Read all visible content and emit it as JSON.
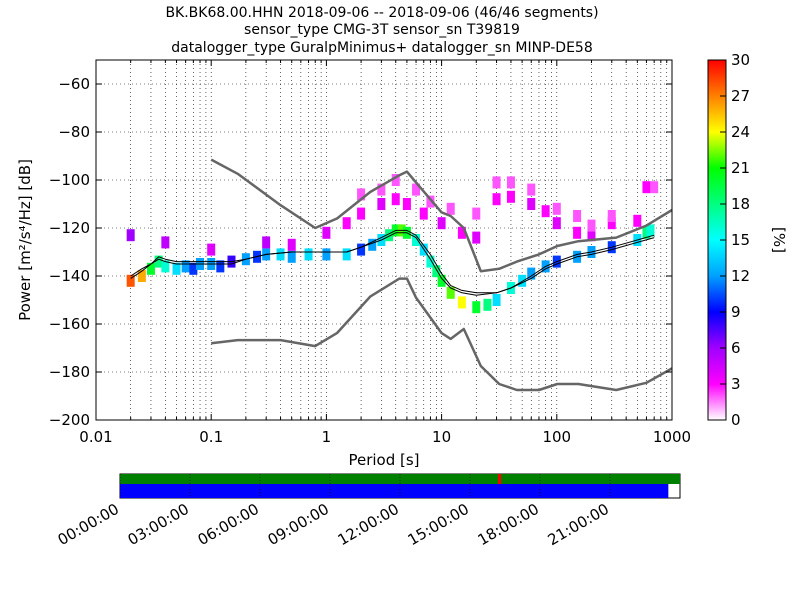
{
  "chart_data": {
    "type": "heatmap",
    "title_lines": [
      "BK.BK68.00.HHN   2018-09-06 -- 2018-09-06  (46/46 segments)",
      "sensor_type CMG-3T sensor_sn T39819",
      "datalogger_type GuralpMinimus+ datalogger_sn MINP-DE58"
    ],
    "xlabel": "Period [s]",
    "ylabel": "Power [m²/s⁴/Hz] [dB]",
    "xscale": "log",
    "xlim": [
      0.01,
      1000
    ],
    "ylim": [
      -200,
      -50
    ],
    "x_ticks": [
      0.01,
      0.1,
      1,
      10,
      100,
      1000
    ],
    "x_tick_labels": [
      "0.01",
      "0.1",
      "1",
      "10",
      "100",
      "1000"
    ],
    "y_ticks": [
      -200,
      -180,
      -160,
      -140,
      -120,
      -100,
      -80,
      -60
    ],
    "y_tick_labels": [
      "−200",
      "−180",
      "−160",
      "−140",
      "−120",
      "−100",
      "−80",
      "−60"
    ],
    "grid": true,
    "colorbar": {
      "label": "[%]",
      "range": [
        0,
        30
      ],
      "ticks": [
        "0",
        "3",
        "6",
        "9",
        "12",
        "15",
        "18",
        "21",
        "24",
        "27",
        "30"
      ],
      "colormap": [
        "#ffffff",
        "#ff00ff",
        "#a000ff",
        "#0000ff",
        "#00a0ff",
        "#00ffff",
        "#00ff80",
        "#00ff00",
        "#ffff00",
        "#ff8000",
        "#ff0000"
      ]
    },
    "nhnm": {
      "name": "NHNM",
      "color": "#666666",
      "period": [
        0.1,
        0.17,
        0.4,
        0.8,
        1.24,
        2.4,
        4.3,
        5,
        6,
        10,
        12,
        15.6,
        21.9,
        31.6,
        45,
        70,
        101,
        154,
        328,
        600,
        1000
      ],
      "power": [
        -91.5,
        -97.4,
        -110.5,
        -120,
        -116,
        -105,
        -98,
        -96.5,
        -101,
        -113.5,
        -115,
        -120,
        -138,
        -137,
        -134,
        -131,
        -127.5,
        -125.5,
        -124,
        -119,
        -112.5
      ]
    },
    "nlnm": {
      "name": "NLNM",
      "color": "#666666",
      "period": [
        0.1,
        0.17,
        0.4,
        0.8,
        1.24,
        2.4,
        4.3,
        5,
        6,
        10,
        12,
        15.6,
        21.9,
        31.6,
        45,
        70,
        101,
        154,
        328,
        600,
        1000
      ],
      "power": [
        -168,
        -166.7,
        -166.7,
        -169.2,
        -163.7,
        -148.6,
        -141.1,
        -141.1,
        -149,
        -163.8,
        -166.2,
        -162.1,
        -177.5,
        -185,
        -187.5,
        -187.5,
        -185,
        -185,
        -187.5,
        -184.5,
        -178.5
      ]
    },
    "mode_line": {
      "period": [
        0.02,
        0.025,
        0.03,
        0.035,
        0.04,
        0.05,
        0.07,
        0.1,
        0.15,
        0.2,
        0.3,
        0.5,
        1,
        1.5,
        2,
        3,
        4,
        5,
        6,
        8,
        10,
        12,
        15,
        20,
        30,
        40,
        60,
        80,
        100,
        150,
        200,
        300,
        500,
        700
      ],
      "power": [
        -141,
        -138,
        -135,
        -132,
        -133,
        -134,
        -134,
        -134,
        -134,
        -133,
        -131,
        -130,
        -130,
        -130,
        -128,
        -124,
        -121,
        -121,
        -123,
        -131,
        -139,
        -144,
        -146,
        -147,
        -147,
        -145,
        -141,
        -137,
        -135,
        -132,
        -131,
        -129,
        -126,
        -124
      ]
    },
    "mean_line": {
      "period": [
        0.02,
        0.025,
        0.03,
        0.035,
        0.04,
        0.05,
        0.07,
        0.1,
        0.15,
        0.2,
        0.3,
        0.5,
        1,
        1.5,
        2,
        3,
        4,
        5,
        6,
        8,
        10,
        12,
        15,
        20,
        30,
        40,
        60,
        80,
        100,
        150,
        200,
        300,
        500,
        700
      ],
      "power": [
        -140,
        -137,
        -135,
        -133,
        -134,
        -135,
        -135,
        -135,
        -135,
        -133,
        -131,
        -130,
        -130,
        -130,
        -128,
        -125,
        -122,
        -122,
        -124,
        -133,
        -141,
        -145,
        -147,
        -148,
        -147,
        -145,
        -140,
        -136,
        -134,
        -131,
        -130,
        -128,
        -125,
        -123
      ]
    },
    "density_cells": [
      [
        0.02,
        -142,
        28
      ],
      [
        0.025,
        -140,
        26
      ],
      [
        0.03,
        -137,
        20
      ],
      [
        0.035,
        -134,
        18
      ],
      [
        0.04,
        -136,
        16
      ],
      [
        0.05,
        -137,
        14
      ],
      [
        0.06,
        -136,
        12
      ],
      [
        0.07,
        -137,
        10
      ],
      [
        0.08,
        -135,
        12
      ],
      [
        0.1,
        -135,
        12
      ],
      [
        0.12,
        -136,
        10
      ],
      [
        0.15,
        -134,
        8
      ],
      [
        0.2,
        -133,
        12
      ],
      [
        0.25,
        -132,
        10
      ],
      [
        0.3,
        -131,
        12
      ],
      [
        0.4,
        -131,
        14
      ],
      [
        0.5,
        -132,
        12
      ],
      [
        0.7,
        -131,
        14
      ],
      [
        1,
        -131,
        12
      ],
      [
        1.5,
        -131,
        14
      ],
      [
        2,
        -129,
        10
      ],
      [
        2.5,
        -127,
        12
      ],
      [
        3,
        -125,
        14
      ],
      [
        3.5,
        -123,
        18
      ],
      [
        4,
        -121,
        20
      ],
      [
        4.5,
        -121,
        22
      ],
      [
        5,
        -122,
        20
      ],
      [
        6,
        -125,
        16
      ],
      [
        7,
        -129,
        14
      ],
      [
        8,
        -134,
        16
      ],
      [
        9,
        -138,
        18
      ],
      [
        10,
        -142,
        20
      ],
      [
        12,
        -147,
        22
      ],
      [
        15,
        -151,
        24
      ],
      [
        20,
        -153,
        20
      ],
      [
        25,
        -152,
        18
      ],
      [
        30,
        -150,
        14
      ],
      [
        40,
        -145,
        16
      ],
      [
        50,
        -142,
        14
      ],
      [
        60,
        -139,
        12
      ],
      [
        80,
        -136,
        12
      ],
      [
        100,
        -134,
        10
      ],
      [
        150,
        -132,
        12
      ],
      [
        200,
        -130,
        12
      ],
      [
        300,
        -128,
        10
      ],
      [
        500,
        -125,
        14
      ],
      [
        600,
        -122,
        18
      ],
      [
        650,
        -121,
        16
      ],
      [
        0.02,
        -123,
        6
      ],
      [
        0.04,
        -126,
        5
      ],
      [
        0.1,
        -129,
        4
      ],
      [
        0.3,
        -126,
        5
      ],
      [
        0.5,
        -127,
        4
      ],
      [
        1,
        -122,
        4
      ],
      [
        1.5,
        -118,
        3
      ],
      [
        2,
        -114,
        3
      ],
      [
        3,
        -110,
        4
      ],
      [
        4,
        -108,
        3
      ],
      [
        5,
        -110,
        3
      ],
      [
        7,
        -114,
        3
      ],
      [
        10,
        -118,
        4
      ],
      [
        15,
        -122,
        3
      ],
      [
        20,
        -124,
        4
      ],
      [
        30,
        -108,
        3
      ],
      [
        40,
        -107,
        3
      ],
      [
        60,
        -110,
        4
      ],
      [
        80,
        -113,
        3
      ],
      [
        100,
        -118,
        4
      ],
      [
        150,
        -122,
        3
      ],
      [
        200,
        -123,
        4
      ],
      [
        300,
        -118,
        3
      ],
      [
        500,
        -117,
        3
      ],
      [
        600,
        -103,
        3
      ],
      [
        2,
        -106,
        2
      ],
      [
        3,
        -104,
        2
      ],
      [
        4,
        -100,
        2
      ],
      [
        6,
        -104,
        2
      ],
      [
        8,
        -109,
        2
      ],
      [
        12,
        -112,
        2
      ],
      [
        20,
        -114,
        2
      ],
      [
        30,
        -101,
        2
      ],
      [
        40,
        -101,
        2
      ],
      [
        60,
        -104,
        2
      ],
      [
        100,
        -112,
        2
      ],
      [
        150,
        -115,
        2
      ],
      [
        200,
        -119,
        2
      ],
      [
        300,
        -115,
        2
      ],
      [
        700,
        -103,
        2
      ]
    ],
    "timeline": {
      "tick_labels": [
        "00:00:00",
        "03:00:00",
        "06:00:00",
        "09:00:00",
        "12:00:00",
        "15:00:00",
        "18:00:00",
        "21:00:00"
      ],
      "hours": [
        0,
        3,
        6,
        9,
        12,
        15,
        18,
        21
      ],
      "top_bar_color": "#008000",
      "top_bar_marker_hour": 16.2,
      "top_bar_marker_color": "#ff0000",
      "bottom_bar_color": "#0000ff",
      "bottom_bar_coverage_hours": 23.5
    }
  }
}
